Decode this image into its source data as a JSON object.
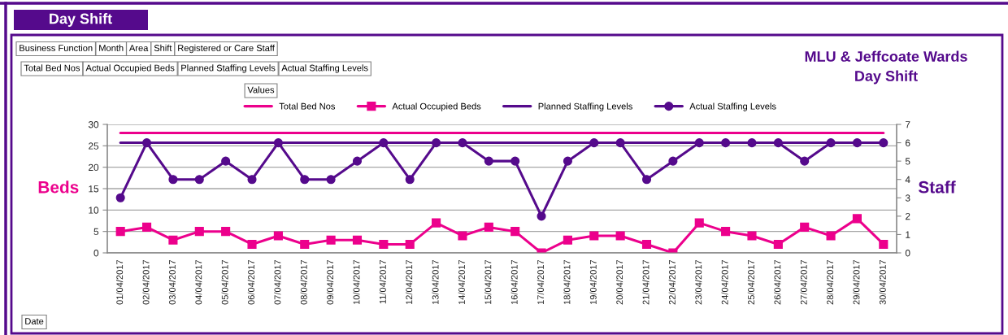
{
  "chart_data": {
    "type": "line",
    "title": "Day Shift",
    "subtitle": "MLU & Jeffcoate Wards\nDay Shift",
    "annotations": [
      "Business Function",
      "Month",
      "Area",
      "Shift",
      "Registered or Care Staff",
      "Total Bed Nos",
      "Actual Occupied Beds",
      "Planned Staffing Levels",
      "Actual Staffing Levels",
      "Values",
      "Date"
    ],
    "ylabel": "Beds",
    "y2label": "Staff",
    "categories": [
      "01/04/2017",
      "02/04/2017",
      "03/04/2017",
      "04/04/2017",
      "05/04/2017",
      "06/04/2017",
      "07/04/2017",
      "08/04/2017",
      "09/04/2017",
      "10/04/2017",
      "11/04/2017",
      "12/04/2017",
      "13/04/2017",
      "14/04/2017",
      "15/04/2017",
      "16/04/2017",
      "17/04/2017",
      "18/04/2017",
      "19/04/2017",
      "20/04/2017",
      "21/04/2017",
      "22/04/2017",
      "23/04/2017",
      "24/04/2017",
      "25/04/2017",
      "26/04/2017",
      "27/04/2017",
      "28/04/2017",
      "29/04/2017",
      "30/04/2017"
    ],
    "series": [
      {
        "name": "Total Bed Nos",
        "color": "#ec008c",
        "marker": "none",
        "values": [
          28,
          28,
          28,
          28,
          28,
          28,
          28,
          28,
          28,
          28,
          28,
          28,
          28,
          28,
          28,
          28,
          28,
          28,
          28,
          28,
          28,
          28,
          28,
          28,
          28,
          28,
          28,
          28,
          28,
          28
        ]
      },
      {
        "name": "Actual Occupied Beds",
        "color": "#ec008c",
        "marker": "square",
        "values": [
          5,
          6,
          3,
          5,
          5,
          2,
          4,
          2,
          3,
          3,
          2,
          2,
          7,
          4,
          6,
          5,
          0,
          3,
          4,
          4,
          2,
          0,
          7,
          5,
          4,
          2,
          6,
          4,
          8,
          2
        ]
      },
      {
        "name": "Planned Staffing Levels",
        "color": "#550a8c",
        "marker": "none",
        "axis": "y2",
        "values": [
          6,
          6,
          6,
          6,
          6,
          6,
          6,
          6,
          6,
          6,
          6,
          6,
          6,
          6,
          6,
          6,
          6,
          6,
          6,
          6,
          6,
          6,
          6,
          6,
          6,
          6,
          6,
          6,
          6,
          6
        ]
      },
      {
        "name": "Actual Staffing Levels",
        "color": "#550a8c",
        "marker": "circle",
        "axis": "y2",
        "values": [
          3,
          6,
          4,
          4,
          5,
          4,
          6,
          4,
          4,
          5,
          6,
          4,
          6,
          6,
          5,
          5,
          2,
          5,
          6,
          6,
          4,
          5,
          6,
          6,
          6,
          6,
          5,
          6,
          6,
          6
        ]
      }
    ],
    "ylim": [
      0,
      30
    ],
    "yticks": [
      0,
      5,
      10,
      15,
      20,
      25,
      30
    ],
    "y2lim": [
      0,
      7
    ],
    "y2ticks": [
      0,
      1,
      2,
      3,
      4,
      5,
      6,
      7
    ],
    "grid": "y",
    "legend": "top",
    "line_style": "solid"
  }
}
